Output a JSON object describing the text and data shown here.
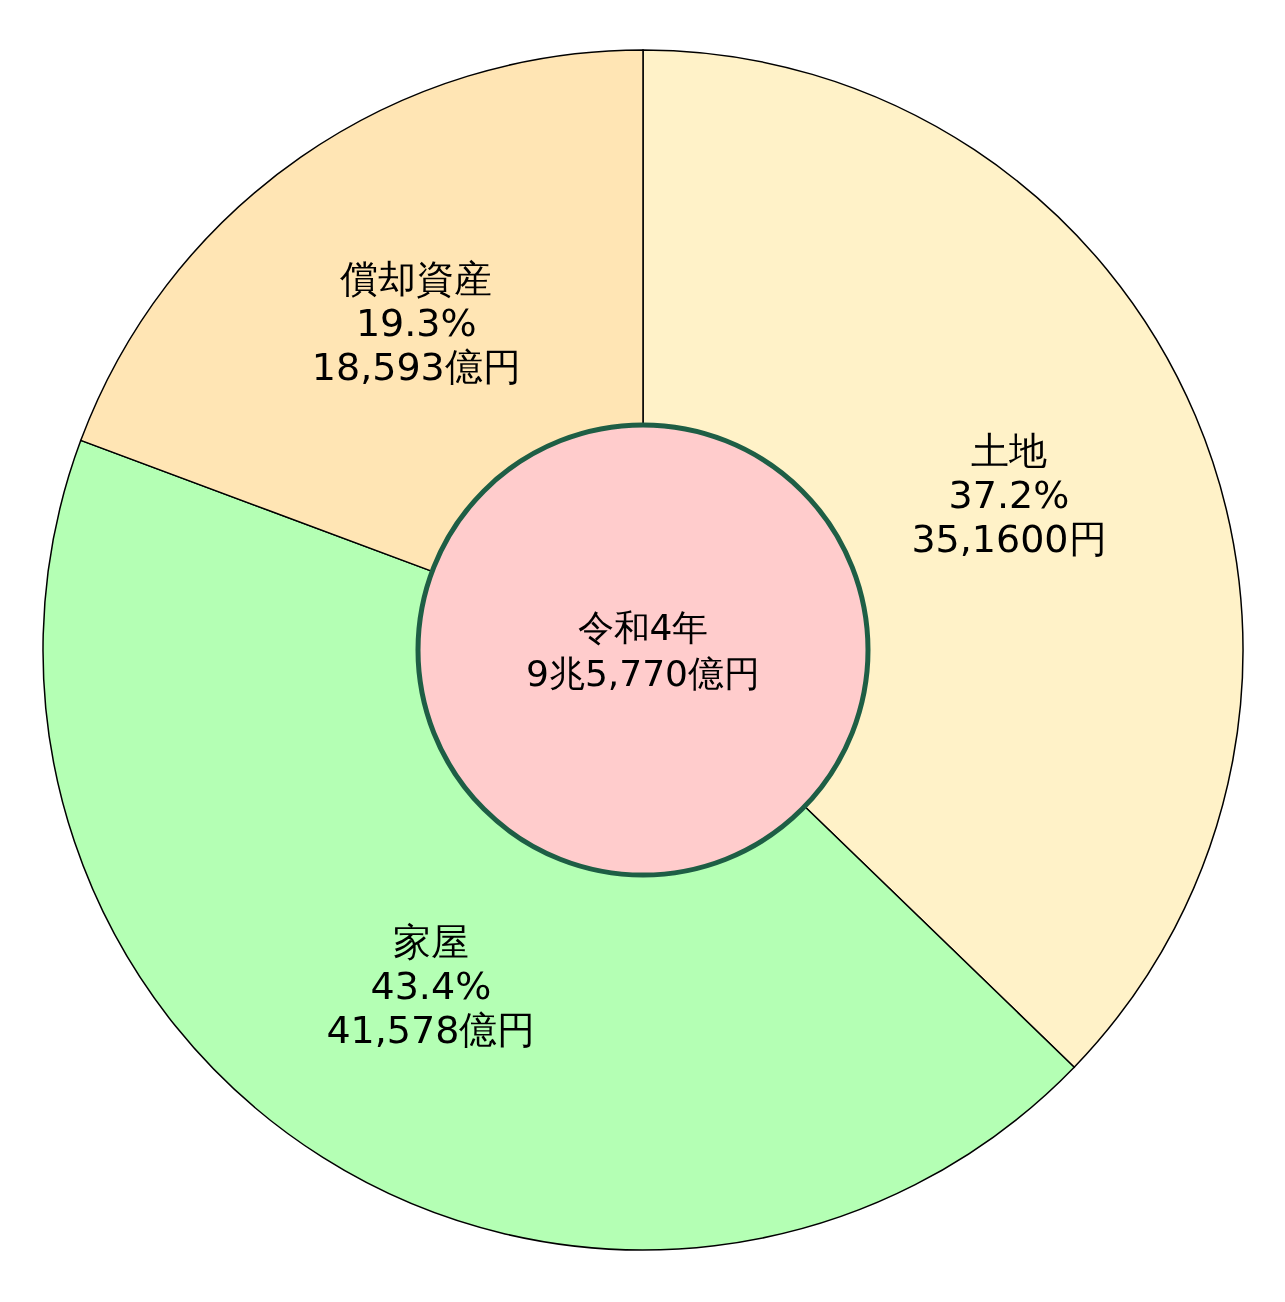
{
  "chart_data": {
    "type": "donut",
    "categories": [
      "土地",
      "家屋",
      "償却資産"
    ],
    "values": [
      37.2,
      43.4,
      19.3
    ],
    "colors": [
      "#fff2c8",
      "#b4ffb4",
      "#ffe5b4"
    ],
    "value_labels": [
      "37.2%\n35,1600円",
      "43.4%\n41,578億円",
      "19.3%\n18,593億円"
    ],
    "annotations": [
      "令和4年",
      "9兆5,770億円"
    ]
  }
}
